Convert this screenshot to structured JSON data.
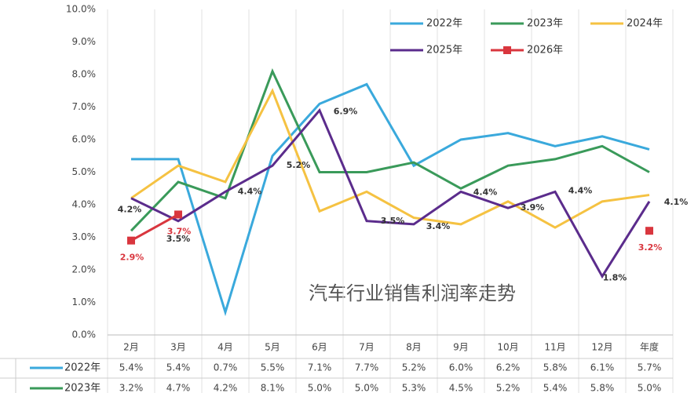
{
  "chart_data": {
    "type": "line",
    "title": "汽车行业销售利润率走势",
    "categories": [
      "2月",
      "3月",
      "4月",
      "5月",
      "6月",
      "7月",
      "8月",
      "9月",
      "10月",
      "11月",
      "12月",
      "年度"
    ],
    "series": [
      {
        "name": "2022年",
        "color": "#3aa9dc",
        "values": [
          5.4,
          5.4,
          0.7,
          5.5,
          7.1,
          7.7,
          5.2,
          6.0,
          6.2,
          5.8,
          6.1,
          5.7
        ],
        "value_labels": [
          "5.4%",
          "5.4%",
          "0.7%",
          "5.5%",
          "7.1%",
          "7.7%",
          "5.2%",
          "6.0%",
          "6.2%",
          "5.8%",
          "6.1%",
          "5.7%"
        ]
      },
      {
        "name": "2023年",
        "color": "#3a9a5a",
        "values": [
          3.2,
          4.7,
          4.2,
          8.1,
          5.0,
          5.0,
          5.3,
          4.5,
          5.2,
          5.4,
          5.8,
          5.0
        ],
        "value_labels": [
          "3.2%",
          "4.7%",
          "4.2%",
          "8.1%",
          "5.0%",
          "5.0%",
          "5.3%",
          "4.5%",
          "5.2%",
          "5.4%",
          "5.8%",
          "5.0%"
        ]
      },
      {
        "name": "2024年",
        "color": "#f5c242",
        "values": [
          4.2,
          5.2,
          4.7,
          7.5,
          3.8,
          4.4,
          3.6,
          3.4,
          4.1,
          3.3,
          4.1,
          4.3
        ]
      },
      {
        "name": "2025年",
        "color": "#5b2c8c",
        "values": [
          4.2,
          3.5,
          4.4,
          5.2,
          6.9,
          3.5,
          3.4,
          4.4,
          3.9,
          4.4,
          1.8,
          4.1
        ],
        "value_labels": [
          "4.2%",
          "3.5%",
          "4.4%",
          "5.2%",
          "6.9%",
          "3.5%",
          "3.4%",
          "4.4%",
          "3.9%",
          "4.4%",
          "1.8%",
          "4.1%"
        ]
      },
      {
        "name": "2026年",
        "color": "#d9363e",
        "marker": "square",
        "values": [
          2.9,
          3.7,
          null,
          null,
          null,
          null,
          null,
          null,
          null,
          null,
          null,
          3.2
        ],
        "value_labels": [
          "2.9%",
          "3.7%",
          null,
          null,
          null,
          null,
          null,
          null,
          null,
          null,
          null,
          "3.2%"
        ]
      }
    ],
    "ylim": [
      0,
      10
    ],
    "yticks": [
      {
        "value": 0,
        "label": "0.0%"
      },
      {
        "value": 1,
        "label": "1.0%"
      },
      {
        "value": 2,
        "label": "2.0%"
      },
      {
        "value": 3,
        "label": "3.0%"
      },
      {
        "value": 4,
        "label": "4.0%"
      },
      {
        "value": 5,
        "label": "5.0%"
      },
      {
        "value": 6,
        "label": "6.0%"
      },
      {
        "value": 7,
        "label": "7.0%"
      },
      {
        "value": 8,
        "label": "8.0%"
      },
      {
        "value": 9,
        "label": "9.0%"
      },
      {
        "value": 10,
        "label": "10.0%"
      }
    ],
    "grid": false,
    "legend": "upper-right"
  }
}
